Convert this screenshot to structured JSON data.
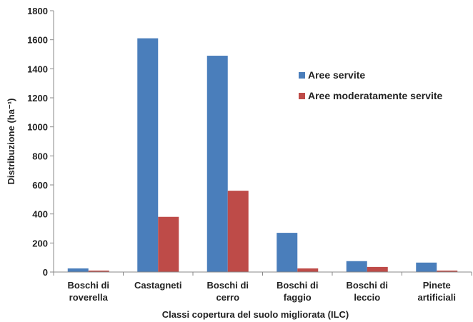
{
  "chart_data": {
    "type": "bar",
    "title": "",
    "xlabel": "Classi copertura del suolo migliorata (ILC)",
    "ylabel": "Distribuzione (ha⁻¹)",
    "ylim": [
      0,
      1800
    ],
    "yticks": [
      0,
      200,
      400,
      600,
      800,
      1000,
      1200,
      1400,
      1600,
      1800
    ],
    "categories": [
      [
        "Boschi di",
        "roverella"
      ],
      [
        "Castagneti"
      ],
      [
        "Boschi di",
        "cerro"
      ],
      [
        "Boschi di",
        "faggio"
      ],
      [
        "Boschi di",
        "leccio"
      ],
      [
        "Pinete",
        "artificiali"
      ]
    ],
    "series": [
      {
        "name": "Aree servite",
        "color": "#4a7ebb",
        "values": [
          25,
          1610,
          1490,
          270,
          75,
          65
        ]
      },
      {
        "name": "Aree moderatamente servite",
        "color": "#be4b48",
        "values": [
          10,
          380,
          560,
          25,
          35,
          10
        ]
      }
    ],
    "grid": false,
    "legend_position": "right"
  }
}
